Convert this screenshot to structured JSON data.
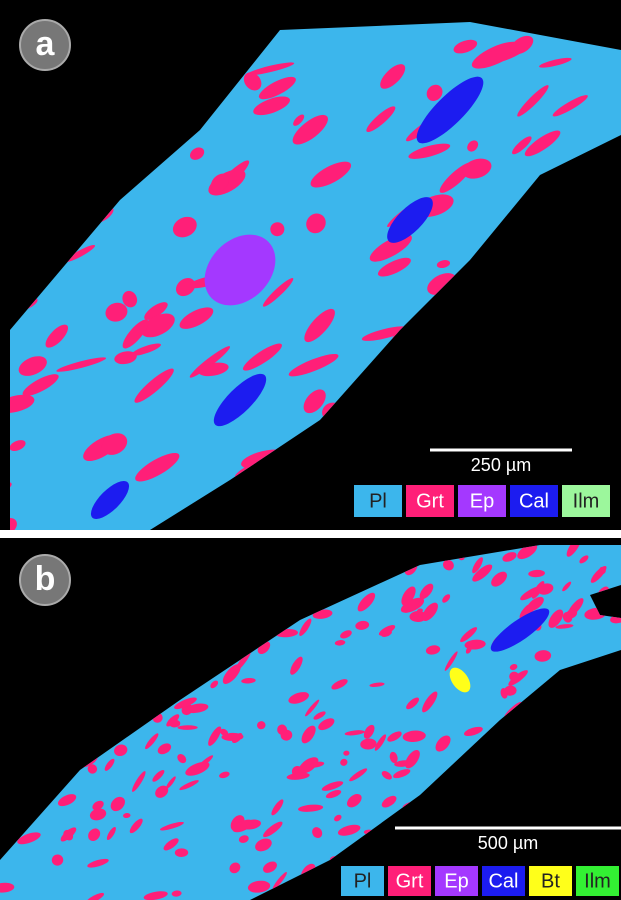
{
  "panels": [
    {
      "label": "a",
      "scale_bar": "250 µm",
      "legend": [
        {
          "label": "Pl",
          "color": "#3cb6ec"
        },
        {
          "label": "Grt",
          "color": "#ff1f78"
        },
        {
          "label": "Ep",
          "color": "#a438ff"
        },
        {
          "label": "Cal",
          "color": "#1c1cf0"
        },
        {
          "label": "Ilm",
          "color": "#9cf79c"
        }
      ]
    },
    {
      "label": "b",
      "scale_bar": "500 µm",
      "legend": [
        {
          "label": "Pl",
          "color": "#3cb6ec"
        },
        {
          "label": "Grt",
          "color": "#ff1f78"
        },
        {
          "label": "Ep",
          "color": "#a438ff"
        },
        {
          "label": "Cal",
          "color": "#1c1cf0"
        },
        {
          "label": "Bt",
          "color": "#ffff1a"
        },
        {
          "label": "Ilm",
          "color": "#33f033"
        }
      ]
    }
  ]
}
